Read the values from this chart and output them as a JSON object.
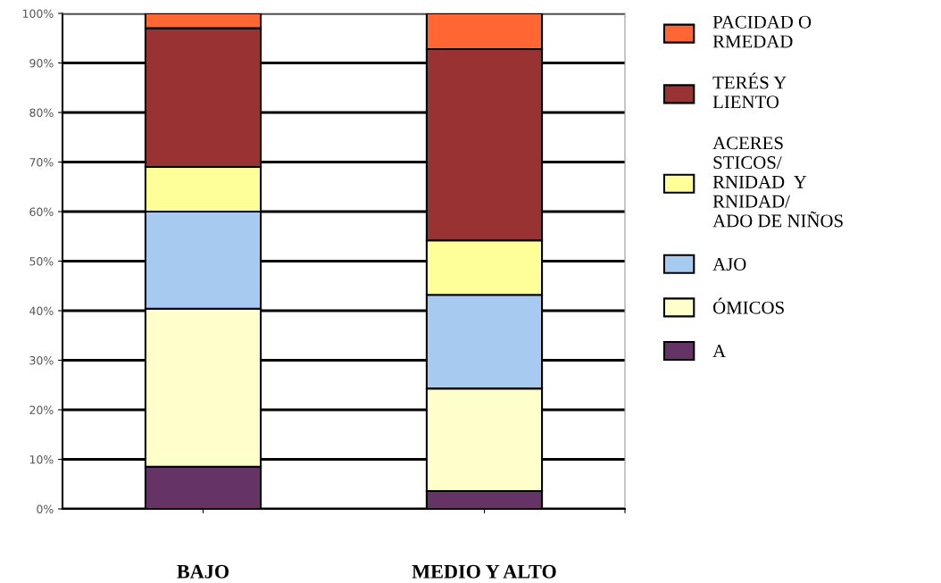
{
  "chart_data": {
    "type": "bar",
    "stacked": true,
    "categories": [
      "BAJO",
      "MEDIO Y ALTO"
    ],
    "series": [
      {
        "name": "A",
        "color": "#663366",
        "values": [
          8.5,
          3.6
        ]
      },
      {
        "name": "ÓMICOS",
        "color": "#ffffcc",
        "values": [
          31.9,
          20.7
        ]
      },
      {
        "name": "AJO",
        "color": "#a6caf0",
        "values": [
          19.6,
          18.9
        ]
      },
      {
        "name": "ACERES\nSTICOS/\nRNIDAD  Y\nRNIDAD/\nADO DE NIÑOS",
        "color": "#ffff99",
        "values": [
          9.0,
          11.0
        ]
      },
      {
        "name": "TERÉS Y\nLIENTO",
        "color": "#993333",
        "values": [
          28.0,
          38.6
        ]
      },
      {
        "name": "PACIDAD O\nRMEDAD",
        "color": "#ff6633",
        "values": [
          3.0,
          7.2
        ]
      }
    ],
    "ylim": [
      0,
      100
    ],
    "yticks": [
      {
        "value": 0,
        "label": "0%"
      },
      {
        "value": 10,
        "label": "10%"
      },
      {
        "value": 20,
        "label": "20%"
      },
      {
        "value": 30,
        "label": "30%"
      },
      {
        "value": 40,
        "label": "40%"
      },
      {
        "value": 50,
        "label": "50%"
      },
      {
        "value": 60,
        "label": "60%"
      },
      {
        "value": 70,
        "label": "70%"
      },
      {
        "value": 80,
        "label": "80%"
      },
      {
        "value": 90,
        "label": "90%"
      },
      {
        "value": 100,
        "label": "100%"
      }
    ],
    "grid": "y",
    "legend": "right"
  }
}
